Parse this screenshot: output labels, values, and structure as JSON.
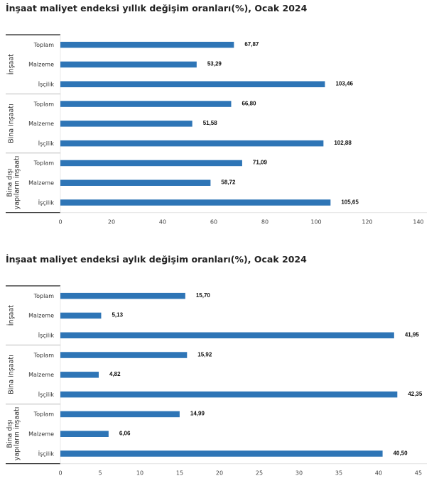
{
  "chart_data": [
    {
      "type": "bar",
      "orientation": "horizontal",
      "title": "İnşaat maliyet endeksi yıllık değişim oranları(%), Ocak 2024",
      "groups": [
        {
          "name": "İnşaat",
          "categories": [
            "Toplam",
            "Malzeme",
            "İşçilik"
          ],
          "values": [
            67.87,
            53.29,
            103.46
          ],
          "labels": [
            "67,87",
            "53,29",
            "103,46"
          ]
        },
        {
          "name": "Bina inşaatı",
          "categories": [
            "Toplam",
            "Malzeme",
            "İşçilik"
          ],
          "values": [
            66.8,
            51.58,
            102.88
          ],
          "labels": [
            "66,80",
            "51,58",
            "102,88"
          ]
        },
        {
          "name": "Bina dışı yapıların inşaatı",
          "name_lines": [
            "Bina dışı",
            "yapıların inşaatı"
          ],
          "categories": [
            "Toplam",
            "Malzeme",
            "İşçilik"
          ],
          "values": [
            71.09,
            58.72,
            105.65
          ],
          "labels": [
            "71,09",
            "58,72",
            "105,65"
          ]
        }
      ],
      "xlim": [
        0,
        140
      ],
      "xticks": [
        0,
        20,
        40,
        60,
        80,
        100,
        120,
        140
      ],
      "grid": false,
      "color": "#2e75b6"
    },
    {
      "type": "bar",
      "orientation": "horizontal",
      "title": "İnşaat maliyet endeksi aylık değişim oranları(%), Ocak 2024",
      "groups": [
        {
          "name": "İnşaat",
          "categories": [
            "Toplam",
            "Malzeme",
            "İşçilik"
          ],
          "values": [
            15.7,
            5.13,
            41.95
          ],
          "labels": [
            "15,70",
            "5,13",
            "41,95"
          ]
        },
        {
          "name": "Bina inşaatı",
          "categories": [
            "Toplam",
            "Malzeme",
            "İşçilik"
          ],
          "values": [
            15.92,
            4.82,
            42.35
          ],
          "labels": [
            "15,92",
            "4,82",
            "42,35"
          ]
        },
        {
          "name": "Bina dışı yapıların inşaatı",
          "name_lines": [
            "Bina dışı",
            "yapıların inşaatı"
          ],
          "categories": [
            "Toplam",
            "Malzeme",
            "İşçilik"
          ],
          "values": [
            14.99,
            6.06,
            40.5
          ],
          "labels": [
            "14,99",
            "6,06",
            "40,50"
          ]
        }
      ],
      "xlim": [
        0,
        45
      ],
      "xticks": [
        0,
        5,
        10,
        15,
        20,
        25,
        30,
        35,
        40,
        45
      ],
      "grid": false,
      "color": "#2e75b6"
    }
  ]
}
